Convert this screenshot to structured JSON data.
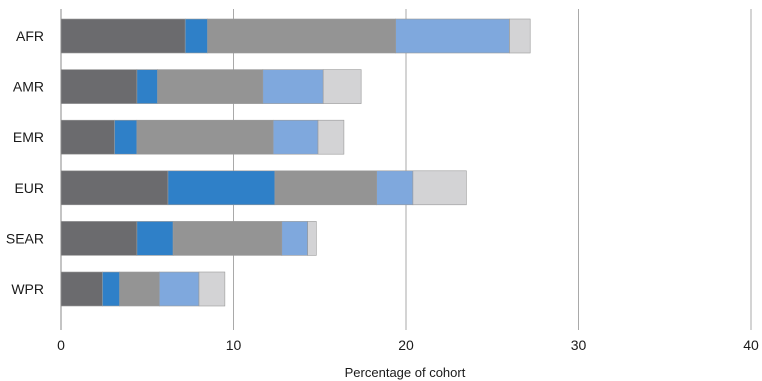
{
  "chart_data": {
    "type": "bar",
    "orientation": "horizontal",
    "stacked": true,
    "title": "",
    "xlabel": "Percentage of cohort",
    "ylabel": "",
    "xlim": [
      0,
      40
    ],
    "xticks": [
      0,
      10,
      20,
      30,
      40
    ],
    "grid": "vertical",
    "legend": "none",
    "categories": [
      "AFR",
      "AMR",
      "EMR",
      "EUR",
      "SEAR",
      "WPR"
    ],
    "series": [
      {
        "color": "#6b6b6e",
        "values": [
          7.2,
          4.4,
          3.1,
          6.2,
          4.4,
          2.4
        ]
      },
      {
        "color": "#2f80c8",
        "values": [
          1.3,
          1.2,
          1.3,
          6.2,
          2.1,
          1.0
        ]
      },
      {
        "color": "#949494",
        "values": [
          10.9,
          6.1,
          7.9,
          5.9,
          6.3,
          2.3
        ]
      },
      {
        "color": "#7fa8dd",
        "values": [
          6.6,
          3.5,
          2.6,
          2.1,
          1.5,
          2.3
        ]
      },
      {
        "color": "#d3d3d5",
        "values": [
          1.2,
          2.2,
          1.5,
          3.1,
          0.5,
          1.5
        ]
      }
    ]
  }
}
